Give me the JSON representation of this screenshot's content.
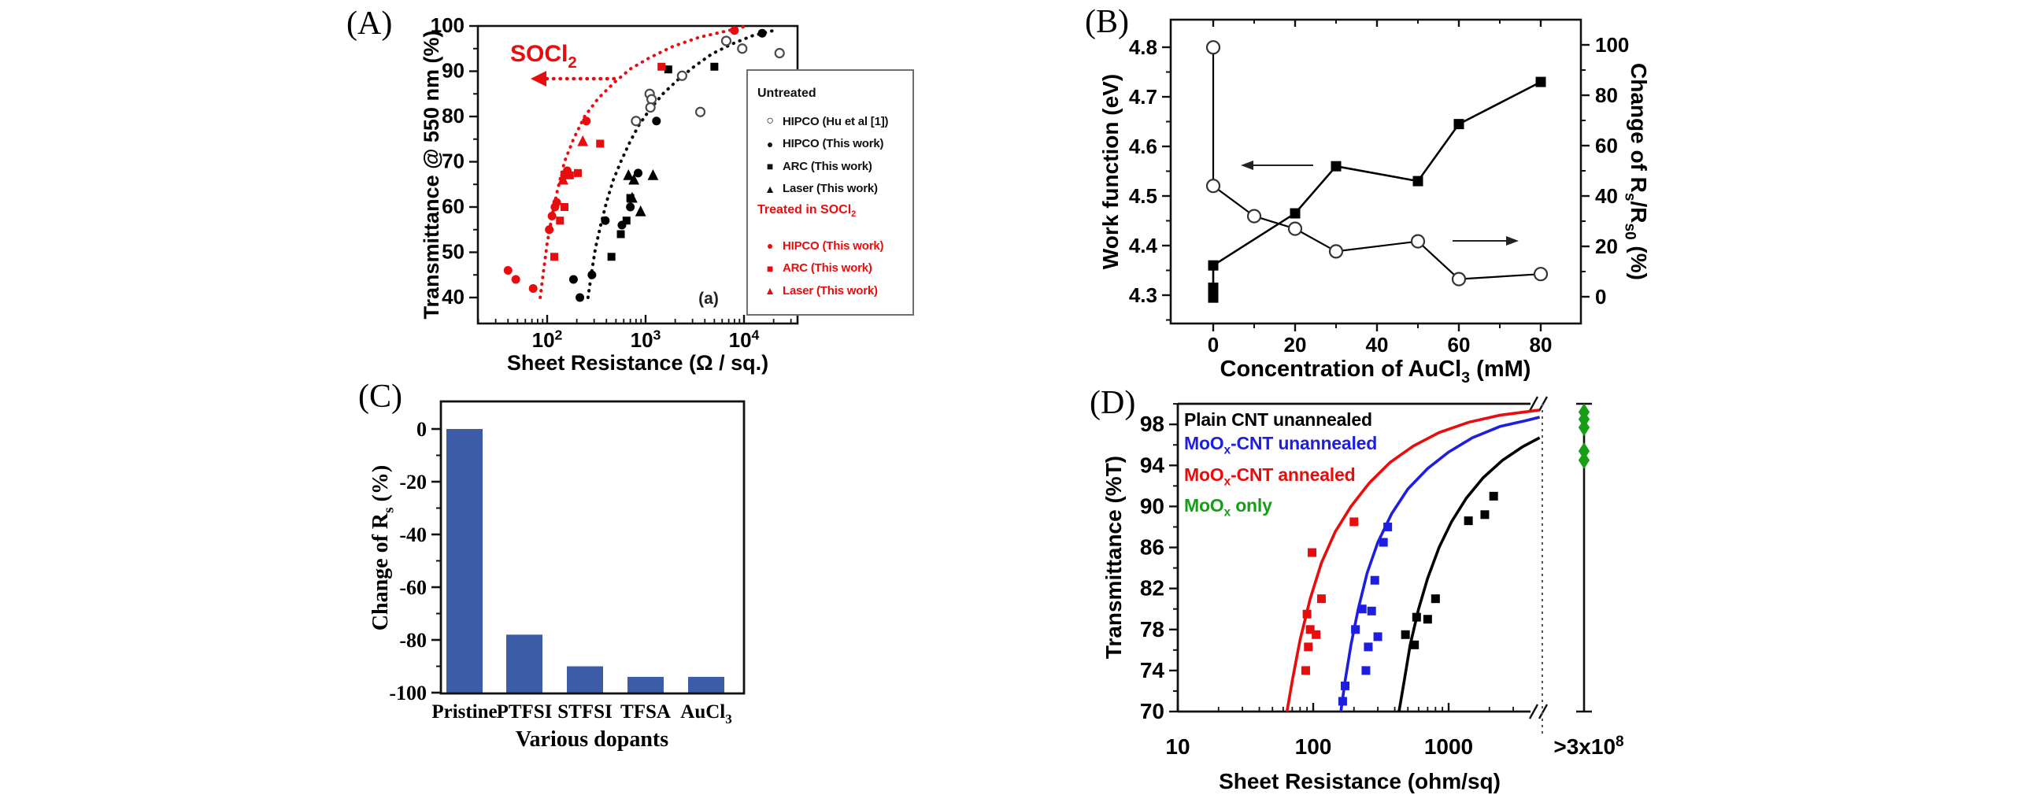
{
  "figure": {
    "background": "#ffffff"
  },
  "colors": {
    "red": "#e90c0c",
    "blue": "#1e1ee0",
    "green": "#169e16",
    "bar_blue": "#3c5ca8",
    "black": "#000000",
    "open_gray": "#4a4a4a"
  },
  "chart_data": [
    {
      "id": "A",
      "panel_label": "(A)",
      "type": "scatter",
      "x_axis": {
        "label": "Sheet Resistance (Ω / sq.)",
        "scale": "log",
        "range": [
          20,
          35000
        ],
        "ticks": [
          {
            "v": 100,
            "label": "10^{2}"
          },
          {
            "v": 1000,
            "label": "10^{3}"
          },
          {
            "v": 10000,
            "label": "10^{4}"
          }
        ]
      },
      "y_axis": {
        "label": "Transmittance @ 550 nm (%)",
        "range": [
          34,
          100
        ],
        "ticks": [
          100,
          90,
          80,
          70,
          60,
          50,
          40
        ]
      },
      "annotation": "SOCl_{2}",
      "annotation_arrow": "left",
      "corner_label": "(a)",
      "legend": {
        "untreated_title": "Untreated",
        "untreated": [
          {
            "marker": "circle-open",
            "label": "HIPCO (Hu et al [1])"
          },
          {
            "marker": "circle",
            "label": "HIPCO (This work)"
          },
          {
            "marker": "square",
            "label": "ARC (This work)"
          },
          {
            "marker": "triangle",
            "label": "Laser (This work)"
          }
        ],
        "treated_title": "Treated in SOCl_{2}",
        "treated": [
          {
            "marker": "circle",
            "label": "HIPCO (This work)"
          },
          {
            "marker": "square",
            "label": "ARC (This work)"
          },
          {
            "marker": "triangle",
            "label": "Laser (This work)"
          }
        ]
      },
      "series": [
        {
          "name": "HIPCO (Hu et al [1])",
          "group": "Untreated",
          "marker": "circle-open",
          "color": "#4a4a4a",
          "points": [
            [
              800,
              79
            ],
            [
              1100,
              85
            ],
            [
              1150,
              83.8
            ],
            [
              1120,
              82
            ],
            [
              2350,
              89
            ],
            [
              3600,
              81
            ],
            [
              6600,
              96.7
            ],
            [
              9600,
              95
            ],
            [
              23000,
              94
            ]
          ]
        },
        {
          "name": "HIPCO (This work)",
          "group": "Untreated",
          "marker": "circle",
          "color": "#000000",
          "points": [
            [
              185,
              44
            ],
            [
              215,
              40
            ],
            [
              285,
              45
            ],
            [
              390,
              57
            ],
            [
              575,
              56
            ],
            [
              700,
              60
            ],
            [
              840,
              67.5
            ],
            [
              1290,
              79
            ],
            [
              15300,
              98.4
            ]
          ]
        },
        {
          "name": "ARC (This work)",
          "group": "Untreated",
          "marker": "square",
          "color": "#000000",
          "points": [
            [
              450,
              49
            ],
            [
              560,
              54
            ],
            [
              640,
              57
            ],
            [
              700,
              62
            ],
            [
              1700,
              90.4
            ],
            [
              5000,
              91
            ]
          ]
        },
        {
          "name": "Laser (This work)",
          "group": "Untreated",
          "marker": "triangle",
          "color": "#000000",
          "points": [
            [
              670,
              67
            ],
            [
              730,
              62
            ],
            [
              760,
              66
            ],
            [
              890,
              59
            ],
            [
              1190,
              67
            ]
          ]
        },
        {
          "name": "HIPCO (This work)",
          "group": "Treated in SOCl2",
          "marker": "circle",
          "color": "#e90c0c",
          "points": [
            [
              40,
              46
            ],
            [
              48,
              44
            ],
            [
              72,
              42
            ],
            [
              105,
              55
            ],
            [
              112,
              58
            ],
            [
              120,
              60
            ],
            [
              125,
              61
            ],
            [
              150,
              67
            ],
            [
              160,
              68
            ],
            [
              250,
              79
            ],
            [
              8000,
              99
            ]
          ]
        },
        {
          "name": "ARC (This work)",
          "group": "Treated in SOCl2",
          "marker": "square",
          "color": "#e90c0c",
          "points": [
            [
              118,
              49
            ],
            [
              135,
              57
            ],
            [
              150,
              60
            ],
            [
              170,
              67
            ],
            [
              205,
              67.5
            ],
            [
              345,
              74
            ],
            [
              1450,
              91
            ]
          ]
        },
        {
          "name": "Laser (This work)",
          "group": "Treated in SOCl2",
          "marker": "triangle",
          "color": "#e90c0c",
          "points": [
            [
              145,
              66
            ],
            [
              230,
              74.5
            ]
          ]
        }
      ],
      "fit_curves": [
        {
          "name": "treated fit",
          "color": "#e90c0c",
          "style": "dotted",
          "points": [
            [
              85,
              40
            ],
            [
              92,
              46
            ],
            [
              100,
              52
            ],
            [
              112,
              58
            ],
            [
              128,
              64
            ],
            [
              150,
              70
            ],
            [
              185,
              75
            ],
            [
              240,
              80
            ],
            [
              330,
              84
            ],
            [
              480,
              87.5
            ],
            [
              700,
              90.5
            ],
            [
              1100,
              93
            ],
            [
              1900,
              95.5
            ],
            [
              3500,
              97.5
            ],
            [
              7000,
              99
            ],
            [
              9800,
              99.8
            ]
          ]
        },
        {
          "name": "untreated fit",
          "color": "#0a0a0a",
          "style": "dotted",
          "points": [
            [
              260,
              40
            ],
            [
              285,
              46
            ],
            [
              310,
              51
            ],
            [
              350,
              56
            ],
            [
              400,
              61
            ],
            [
              470,
              66
            ],
            [
              560,
              70
            ],
            [
              680,
              74
            ],
            [
              850,
              78
            ],
            [
              1100,
              81.5
            ],
            [
              1500,
              85
            ],
            [
              2100,
              88
            ],
            [
              3100,
              91
            ],
            [
              4700,
              93.8
            ],
            [
              7500,
              96
            ],
            [
              12000,
              97.8
            ],
            [
              20000,
              99
            ]
          ]
        }
      ]
    },
    {
      "id": "B",
      "panel_label": "(B)",
      "type": "line",
      "x_axis": {
        "label": "Concentration of AuCl_{3} (mM)",
        "range": [
          -10,
          90
        ],
        "ticks": [
          0,
          20,
          40,
          60,
          80
        ]
      },
      "y_left": {
        "label": "Work function (eV)",
        "range": [
          4.24,
          4.86
        ],
        "ticks": [
          4.8,
          4.7,
          4.6,
          4.5,
          4.4,
          4.3
        ]
      },
      "y_right": {
        "label": "Change of R_{s}/R_{s0} (%)",
        "range": [
          -11,
          110
        ],
        "ticks": [
          100,
          80,
          60,
          40,
          20,
          0
        ]
      },
      "arrows": [
        {
          "points_to": "left-axis"
        },
        {
          "points_to": "right-axis"
        }
      ],
      "series": [
        {
          "name": "Work function",
          "axis": "left",
          "marker": "square",
          "color": "#000000",
          "points": [
            [
              0,
              4.295
            ],
            [
              0,
              4.315
            ],
            [
              0,
              4.36
            ],
            [
              20,
              4.465
            ],
            [
              30,
              4.56
            ],
            [
              50,
              4.53
            ],
            [
              60,
              4.645
            ],
            [
              80,
              4.73
            ]
          ]
        },
        {
          "name": "Change of Rs/Rs0",
          "axis": "right",
          "marker": "circle-open",
          "color": "#000000",
          "points": [
            [
              0,
              99
            ],
            [
              0,
              44
            ],
            [
              10,
              32
            ],
            [
              20,
              27
            ],
            [
              30,
              18
            ],
            [
              50,
              22
            ],
            [
              60,
              7
            ],
            [
              80,
              9
            ]
          ]
        }
      ]
    },
    {
      "id": "C",
      "panel_label": "(C)",
      "type": "bar",
      "x_axis": {
        "label": "Various dopants"
      },
      "y_axis": {
        "label": "Change of R_{s} (%)",
        "range": [
          -100,
          10.5
        ],
        "ticks": [
          0,
          -20,
          -40,
          -60,
          -80,
          -100
        ]
      },
      "categories": [
        "Pristine",
        "PTFSI",
        "STFSI",
        "TFSA",
        "AuCl_{3}"
      ],
      "values": [
        0,
        -78,
        -90,
        -94,
        -94
      ],
      "bar_color": "#3c5ca8"
    },
    {
      "id": "D",
      "panel_label": "(D)",
      "type": "scatter-line",
      "x_axis": {
        "label": "Sheet Resistance (ohm/sq)",
        "scale": "log",
        "range": [
          10,
          4900
        ],
        "ticks": [
          {
            "v": 10,
            "label": "10"
          },
          {
            "v": 100,
            "label": "100"
          },
          {
            "v": 1000,
            "label": "1000"
          }
        ],
        "break_label": ">3x10^{8}"
      },
      "y_axis": {
        "label": "Transmittance (%T)",
        "range": [
          70,
          100
        ],
        "ticks": [
          98,
          94,
          90,
          86,
          82,
          78,
          74,
          70
        ]
      },
      "legend": [
        {
          "label": "Plain CNT unannealed",
          "color": "#000000"
        },
        {
          "label": "MoO_{x}-CNT unannealed",
          "color": "#1e1ee0"
        },
        {
          "label": "MoO_{x}-CNT annealed",
          "color": "#e90c0c"
        },
        {
          "label": "MoO_{x} only",
          "color": "#169e16"
        }
      ],
      "series": [
        {
          "name": "Plain CNT unannealed",
          "color": "#000000",
          "marker": "square",
          "points": [
            [
              480,
              77.5
            ],
            [
              560,
              76.5
            ],
            [
              580,
              79.2
            ],
            [
              700,
              79
            ],
            [
              800,
              81
            ],
            [
              1400,
              88.6
            ],
            [
              1850,
              89.2
            ],
            [
              2150,
              91
            ]
          ],
          "curve": [
            [
              430,
              70
            ],
            [
              470,
              73
            ],
            [
              520,
              76.5
            ],
            [
              600,
              80
            ],
            [
              700,
              83
            ],
            [
              850,
              86
            ],
            [
              1050,
              88.5
            ],
            [
              1350,
              90.8
            ],
            [
              1800,
              92.8
            ],
            [
              2500,
              94.5
            ],
            [
              3500,
              95.8
            ],
            [
              4700,
              96.7
            ]
          ]
        },
        {
          "name": "MoOx-CNT unannealed",
          "color": "#1e1ee0",
          "marker": "square",
          "points": [
            [
              165,
              71
            ],
            [
              172,
              72.5
            ],
            [
              205,
              78
            ],
            [
              230,
              80
            ],
            [
              245,
              74
            ],
            [
              255,
              76.3
            ],
            [
              270,
              79.8
            ],
            [
              285,
              82.8
            ],
            [
              300,
              77.3
            ],
            [
              330,
              86.5
            ],
            [
              355,
              88
            ]
          ],
          "curve": [
            [
              160,
              70
            ],
            [
              172,
              73
            ],
            [
              190,
              76.5
            ],
            [
              215,
              80
            ],
            [
              250,
              83.5
            ],
            [
              300,
              86.5
            ],
            [
              380,
              89.3
            ],
            [
              500,
              91.7
            ],
            [
              700,
              93.7
            ],
            [
              1000,
              95.3
            ],
            [
              1500,
              96.7
            ],
            [
              2400,
              97.8
            ],
            [
              3800,
              98.4
            ],
            [
              4700,
              98.7
            ]
          ]
        },
        {
          "name": "MoOx-CNT annealed",
          "color": "#e90c0c",
          "marker": "square",
          "points": [
            [
              88,
              74
            ],
            [
              92,
              76.3
            ],
            [
              95,
              78
            ],
            [
              90,
              79.5
            ],
            [
              105,
              77.5
            ],
            [
              115,
              81
            ],
            [
              98,
              85.5
            ],
            [
              200,
              88.5
            ]
          ],
          "curve": [
            [
              64,
              70
            ],
            [
              70,
              73
            ],
            [
              80,
              77
            ],
            [
              95,
              81
            ],
            [
              115,
              84.5
            ],
            [
              145,
              87.5
            ],
            [
              190,
              90
            ],
            [
              260,
              92.3
            ],
            [
              370,
              94.3
            ],
            [
              550,
              95.9
            ],
            [
              850,
              97.2
            ],
            [
              1400,
              98.2
            ],
            [
              2400,
              98.9
            ],
            [
              4700,
              99.4
            ]
          ]
        },
        {
          "name": "MoOx only",
          "color": "#169e16",
          "marker": "diamond",
          "x_label": ">3x10^{8}",
          "points_T": [
            99.2,
            98.5,
            97.7,
            95.4,
            94.5
          ]
        }
      ]
    }
  ]
}
